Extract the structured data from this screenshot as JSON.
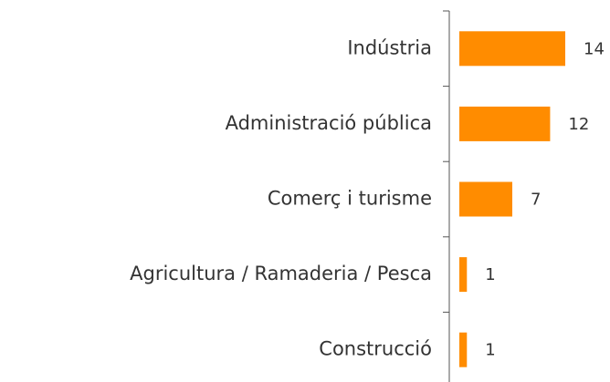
{
  "chart_data": {
    "type": "hbar",
    "categories": [
      "Indústria",
      "Administració pública",
      "Comerç i turisme",
      "Agricultura / Ramaderia / Pesca",
      "Construcció"
    ],
    "values": [
      14,
      12,
      7,
      1,
      1
    ],
    "color": "#ff8c00"
  }
}
